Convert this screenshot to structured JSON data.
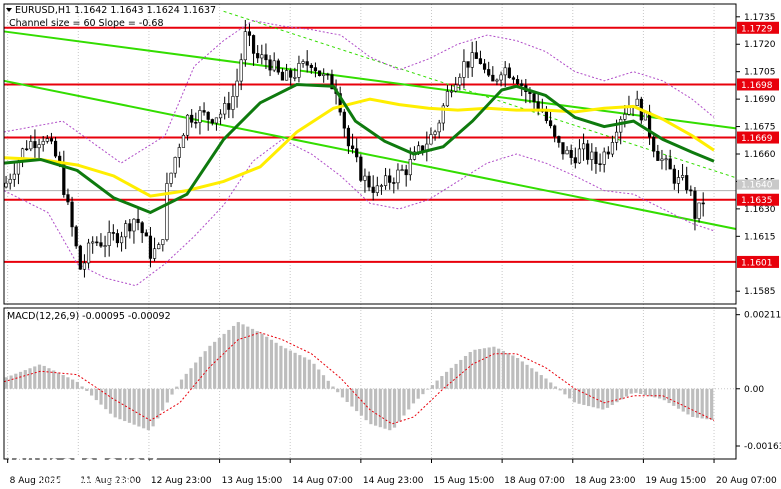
{
  "header": {
    "symbol_line": "EURUSD,H1  1.1642 1.1643 1.1624 1.1637",
    "channel_line": "Channel size = 60 Slope = -0.68"
  },
  "macd_header": "MACD(12,26,9) -0.00095 -0.00092",
  "watermark": {
    "brand": "instaforex",
    "tagline": "Instant Forex Trading"
  },
  "colors": {
    "candles": "#000000",
    "level_lines": "#e8000b",
    "channel": "#33dd00",
    "ma_slow": "#ffee00",
    "ma_fast": "#0e7a0e",
    "bollinger": "#b04cc8",
    "macd_hist": "#bdbdbd",
    "macd_signal": "#e8000b",
    "current_price": "#b0b0b0"
  },
  "chart_data": {
    "type": "candlestick",
    "symbol": "EURUSD",
    "timeframe": "H1",
    "ohlc_last": {
      "open": 1.1642,
      "high": 1.1643,
      "low": 1.1624,
      "close": 1.1637
    },
    "y_axis": {
      "ylim": [
        1.1578,
        1.1742
      ],
      "ticks": [
        "1.1735",
        "1.1720",
        "1.1705",
        "1.1690",
        "1.1675",
        "1.1660",
        "1.1645",
        "1.1630",
        "1.1615",
        "1.1585"
      ]
    },
    "x_axis": {
      "tick_labels": [
        "8 Aug 2025",
        "11 Aug 23:00",
        "12 Aug 23:00",
        "13 Aug 15:00",
        "14 Aug 07:00",
        "14 Aug 23:00",
        "15 Aug 15:00",
        "18 Aug 07:00",
        "18 Aug 23:00",
        "19 Aug 15:00",
        "20 Aug 07:00"
      ]
    },
    "horizontal_levels": [
      1.1729,
      1.1698,
      1.1669,
      1.1635,
      1.1601
    ],
    "level_labels": [
      "1.1729",
      "1.1698",
      "1.1669",
      "1.1635",
      "1.1601"
    ],
    "current_price": 1.164,
    "current_price_label": "1.1640",
    "channel": {
      "size": 60,
      "slope": -0.68,
      "upper_line": [
        [
          0.0,
          1.1727
        ],
        [
          1.0,
          1.1674
        ]
      ],
      "lower_line": [
        [
          0.0,
          1.17
        ],
        [
          1.0,
          1.1619
        ]
      ],
      "parallel_line": [
        [
          0.3,
          1.1738
        ],
        [
          1.0,
          1.1647
        ]
      ]
    },
    "close_path": [
      [
        0.0,
        1.1642
      ],
      [
        0.03,
        1.1665
      ],
      [
        0.055,
        1.167
      ],
      [
        0.075,
        1.1655
      ],
      [
        0.09,
        1.1625
      ],
      [
        0.105,
        1.1596
      ],
      [
        0.12,
        1.1612
      ],
      [
        0.14,
        1.1612
      ],
      [
        0.16,
        1.1617
      ],
      [
        0.18,
        1.1626
      ],
      [
        0.2,
        1.1606
      ],
      [
        0.215,
        1.1608
      ],
      [
        0.222,
        1.164
      ],
      [
        0.235,
        1.166
      ],
      [
        0.25,
        1.168
      ],
      [
        0.265,
        1.1682
      ],
      [
        0.28,
        1.168
      ],
      [
        0.3,
        1.1683
      ],
      [
        0.315,
        1.1693
      ],
      [
        0.33,
        1.1725
      ],
      [
        0.345,
        1.1712
      ],
      [
        0.36,
        1.1712
      ],
      [
        0.38,
        1.17
      ],
      [
        0.4,
        1.1705
      ],
      [
        0.42,
        1.1711
      ],
      [
        0.435,
        1.1702
      ],
      [
        0.455,
        1.1696
      ],
      [
        0.47,
        1.1665
      ],
      [
        0.49,
        1.1647
      ],
      [
        0.51,
        1.164
      ],
      [
        0.53,
        1.1647
      ],
      [
        0.55,
        1.1652
      ],
      [
        0.57,
        1.1663
      ],
      [
        0.59,
        1.1673
      ],
      [
        0.61,
        1.1698
      ],
      [
        0.63,
        1.171
      ],
      [
        0.65,
        1.1712
      ],
      [
        0.665,
        1.1696
      ],
      [
        0.68,
        1.1708
      ],
      [
        0.7,
        1.1703
      ],
      [
        0.715,
        1.1693
      ],
      [
        0.735,
        1.1684
      ],
      [
        0.755,
        1.1665
      ],
      [
        0.775,
        1.1658
      ],
      [
        0.79,
        1.1662
      ],
      [
        0.81,
        1.1655
      ],
      [
        0.825,
        1.1663
      ],
      [
        0.84,
        1.168
      ],
      [
        0.86,
        1.169
      ],
      [
        0.875,
        1.168
      ],
      [
        0.89,
        1.1662
      ],
      [
        0.905,
        1.1653
      ],
      [
        0.92,
        1.1645
      ],
      [
        0.935,
        1.1643
      ],
      [
        0.945,
        1.1625
      ],
      [
        0.958,
        1.1637
      ]
    ],
    "ma_fast": [
      [
        0.0,
        1.1655
      ],
      [
        0.05,
        1.1657
      ],
      [
        0.1,
        1.1651
      ],
      [
        0.15,
        1.1636
      ],
      [
        0.2,
        1.1628
      ],
      [
        0.25,
        1.1638
      ],
      [
        0.3,
        1.1668
      ],
      [
        0.35,
        1.1688
      ],
      [
        0.4,
        1.1698
      ],
      [
        0.45,
        1.1697
      ],
      [
        0.48,
        1.1678
      ],
      [
        0.52,
        1.1667
      ],
      [
        0.56,
        1.166
      ],
      [
        0.6,
        1.1664
      ],
      [
        0.64,
        1.1678
      ],
      [
        0.68,
        1.1695
      ],
      [
        0.7,
        1.1697
      ],
      [
        0.74,
        1.1692
      ],
      [
        0.78,
        1.168
      ],
      [
        0.82,
        1.1675
      ],
      [
        0.86,
        1.1678
      ],
      [
        0.9,
        1.1668
      ],
      [
        0.94,
        1.1661
      ],
      [
        0.97,
        1.1656
      ]
    ],
    "ma_slow": [
      [
        0.0,
        1.1658
      ],
      [
        0.05,
        1.1657
      ],
      [
        0.1,
        1.1654
      ],
      [
        0.15,
        1.1648
      ],
      [
        0.2,
        1.1637
      ],
      [
        0.25,
        1.164
      ],
      [
        0.3,
        1.1645
      ],
      [
        0.35,
        1.1653
      ],
      [
        0.4,
        1.1672
      ],
      [
        0.45,
        1.1685
      ],
      [
        0.5,
        1.169
      ],
      [
        0.54,
        1.1687
      ],
      [
        0.58,
        1.1685
      ],
      [
        0.62,
        1.1684
      ],
      [
        0.66,
        1.1685
      ],
      [
        0.7,
        1.1684
      ],
      [
        0.74,
        1.1684
      ],
      [
        0.78,
        1.1683
      ],
      [
        0.82,
        1.1685
      ],
      [
        0.86,
        1.1686
      ],
      [
        0.9,
        1.1679
      ],
      [
        0.94,
        1.167
      ],
      [
        0.97,
        1.1662
      ]
    ],
    "bollinger_upper": [
      [
        0.0,
        1.1672
      ],
      [
        0.08,
        1.1678
      ],
      [
        0.16,
        1.1655
      ],
      [
        0.22,
        1.167
      ],
      [
        0.26,
        1.1708
      ],
      [
        0.3,
        1.1722
      ],
      [
        0.34,
        1.1733
      ],
      [
        0.38,
        1.173
      ],
      [
        0.42,
        1.1728
      ],
      [
        0.46,
        1.1725
      ],
      [
        0.5,
        1.1713
      ],
      [
        0.54,
        1.1706
      ],
      [
        0.58,
        1.1712
      ],
      [
        0.62,
        1.172
      ],
      [
        0.66,
        1.1725
      ],
      [
        0.7,
        1.1722
      ],
      [
        0.74,
        1.1716
      ],
      [
        0.78,
        1.1705
      ],
      [
        0.82,
        1.17
      ],
      [
        0.86,
        1.1705
      ],
      [
        0.9,
        1.17
      ],
      [
        0.94,
        1.169
      ],
      [
        0.97,
        1.168
      ]
    ],
    "bollinger_lower": [
      [
        0.0,
        1.164
      ],
      [
        0.06,
        1.1628
      ],
      [
        0.1,
        1.16
      ],
      [
        0.14,
        1.1592
      ],
      [
        0.18,
        1.1588
      ],
      [
        0.22,
        1.16
      ],
      [
        0.26,
        1.1615
      ],
      [
        0.3,
        1.1632
      ],
      [
        0.34,
        1.1656
      ],
      [
        0.38,
        1.1668
      ],
      [
        0.42,
        1.166
      ],
      [
        0.46,
        1.1648
      ],
      [
        0.5,
        1.1633
      ],
      [
        0.54,
        1.163
      ],
      [
        0.58,
        1.1635
      ],
      [
        0.62,
        1.1645
      ],
      [
        0.66,
        1.1655
      ],
      [
        0.7,
        1.166
      ],
      [
        0.74,
        1.1655
      ],
      [
        0.78,
        1.1648
      ],
      [
        0.82,
        1.164
      ],
      [
        0.86,
        1.1638
      ],
      [
        0.9,
        1.163
      ],
      [
        0.94,
        1.1622
      ],
      [
        0.97,
        1.1618
      ]
    ],
    "macd": {
      "params": "12,26,9",
      "main": -0.00095,
      "signal": -0.00092,
      "ticks": [
        "0.00211",
        "0.00",
        "-0.00163"
      ],
      "ylim": [
        -0.002,
        0.0023
      ],
      "hist_path": [
        [
          0.0,
          0.0003
        ],
        [
          0.05,
          0.0007
        ],
        [
          0.1,
          0.0002
        ],
        [
          0.15,
          -0.0008
        ],
        [
          0.2,
          -0.0012
        ],
        [
          0.24,
          0.0002
        ],
        [
          0.28,
          0.0012
        ],
        [
          0.32,
          0.0019
        ],
        [
          0.35,
          0.0016
        ],
        [
          0.38,
          0.0012
        ],
        [
          0.42,
          0.0008
        ],
        [
          0.46,
          -0.0002
        ],
        [
          0.5,
          -0.001
        ],
        [
          0.53,
          -0.0012
        ],
        [
          0.56,
          -0.0004
        ],
        [
          0.6,
          0.0004
        ],
        [
          0.64,
          0.0011
        ],
        [
          0.67,
          0.0012
        ],
        [
          0.7,
          0.0009
        ],
        [
          0.74,
          0.0003
        ],
        [
          0.78,
          -0.0004
        ],
        [
          0.82,
          -0.0006
        ],
        [
          0.86,
          -0.0001
        ],
        [
          0.9,
          -0.0003
        ],
        [
          0.94,
          -0.0008
        ],
        [
          0.97,
          -0.0009
        ]
      ],
      "signal_path": [
        [
          0.0,
          0.0002
        ],
        [
          0.05,
          0.0005
        ],
        [
          0.1,
          0.0004
        ],
        [
          0.15,
          -0.0003
        ],
        [
          0.2,
          -0.0009
        ],
        [
          0.24,
          -0.0004
        ],
        [
          0.28,
          0.0006
        ],
        [
          0.32,
          0.0014
        ],
        [
          0.35,
          0.0016
        ],
        [
          0.38,
          0.0014
        ],
        [
          0.42,
          0.001
        ],
        [
          0.46,
          0.0003
        ],
        [
          0.5,
          -0.0006
        ],
        [
          0.53,
          -0.001
        ],
        [
          0.56,
          -0.0008
        ],
        [
          0.6,
          0.0
        ],
        [
          0.64,
          0.0007
        ],
        [
          0.67,
          0.001
        ],
        [
          0.7,
          0.001
        ],
        [
          0.74,
          0.0006
        ],
        [
          0.78,
          0.0
        ],
        [
          0.82,
          -0.0004
        ],
        [
          0.86,
          -0.0002
        ],
        [
          0.9,
          -0.0002
        ],
        [
          0.94,
          -0.0006
        ],
        [
          0.97,
          -0.0009
        ]
      ]
    }
  }
}
